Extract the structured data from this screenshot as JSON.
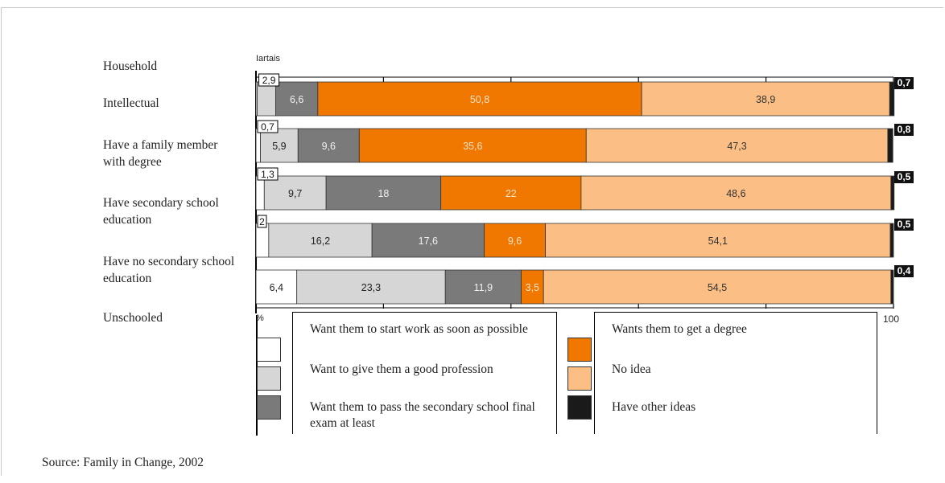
{
  "chart_data": {
    "type": "bar",
    "stacked": true,
    "orientation": "horizontal",
    "header_text": "Iartais",
    "axis_start_label": "%",
    "axis_end_label": "100",
    "xlim": [
      0,
      100
    ],
    "row_labels": [
      "Household",
      "Intellectual",
      "Have a family member with degree",
      "Have secondary school education",
      "Have no secondary school education",
      "Unschooled"
    ],
    "categories": [
      "Intellectual",
      "Have a family member with degree",
      "Have secondary school education",
      "Have no secondary school education",
      "Unschooled"
    ],
    "series": [
      {
        "name": "Want them to start work as soon as possible",
        "color": "#ffffff",
        "values": [
          0.2,
          0.7,
          1.3,
          2,
          6.4
        ],
        "labels": [
          "",
          "0,7",
          "1,3",
          "2",
          "6,4"
        ]
      },
      {
        "name": "Want to give them a good profession",
        "color": "#d6d6d6",
        "values": [
          2.9,
          5.9,
          9.7,
          16.2,
          23.3
        ],
        "labels": [
          "2,9",
          "5,9",
          "9,7",
          "16,2",
          "23,3"
        ]
      },
      {
        "name": "Want them to pass the secondary school final exam at least",
        "color": "#7a7a7a",
        "values": [
          6.6,
          9.6,
          18,
          17.6,
          11.9
        ],
        "labels": [
          "6,6",
          "9,6",
          "18",
          "17,6",
          "11,9"
        ]
      },
      {
        "name": "Wants them to get a degree",
        "color": "#f07800",
        "values": [
          50.8,
          35.6,
          22,
          9.6,
          3.5
        ],
        "labels": [
          "50,8",
          "35,6",
          "22",
          "9,6",
          "3,5"
        ]
      },
      {
        "name": "No idea",
        "color": "#fbbf85",
        "values": [
          38.9,
          47.3,
          48.6,
          54.1,
          54.5
        ],
        "labels": [
          "38,9",
          "47,3",
          "48,6",
          "54,1",
          "54,5"
        ]
      },
      {
        "name": "Have other ideas",
        "color": "#1a1a1a",
        "values": [
          0.7,
          0.8,
          0.5,
          0.5,
          0.4
        ],
        "labels": [
          "0,7",
          "0,8",
          "0,5",
          "0,5",
          "0,4"
        ]
      }
    ]
  },
  "legend": {
    "left_items": [
      {
        "text": "Want them to start work as soon as possible",
        "color": "#ffffff"
      },
      {
        "text": "Want to give them a good profession",
        "color": "#d6d6d6"
      },
      {
        "text": "Want them to pass the secondary school final exam at least",
        "color": "#7a7a7a"
      }
    ],
    "right_items": [
      {
        "text": "Wants them to get a degree",
        "color": "#f07800"
      },
      {
        "text": "No idea",
        "color": "#fbbf85"
      },
      {
        "text": "Have other ideas",
        "color": "#1a1a1a"
      }
    ]
  },
  "source": "Source: Family in Change, 2002"
}
